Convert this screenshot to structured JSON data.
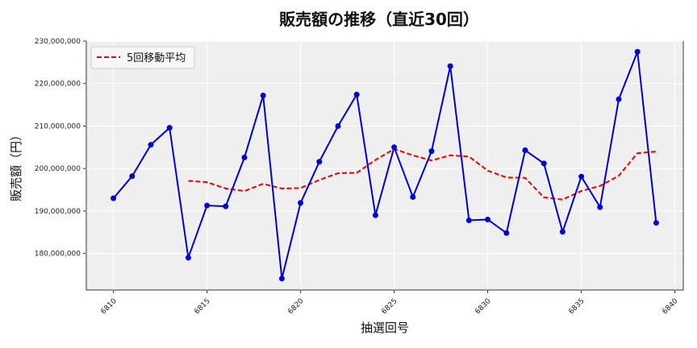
{
  "chart_data": {
    "type": "line",
    "title": "販売額の推移（直近30回）",
    "xlabel": "抽選回号",
    "ylabel": "販売額（円）",
    "x": [
      6810,
      6811,
      6812,
      6813,
      6814,
      6815,
      6816,
      6817,
      6818,
      6819,
      6820,
      6821,
      6822,
      6823,
      6824,
      6825,
      6826,
      6827,
      6828,
      6829,
      6830,
      6831,
      6832,
      6833,
      6834,
      6835,
      6836,
      6837,
      6838,
      6839
    ],
    "xticks": [
      6810,
      6815,
      6820,
      6825,
      6830,
      6835,
      6840
    ],
    "xlim": [
      6808.55,
      6840.45
    ],
    "yticks": [
      180000000,
      190000000,
      200000000,
      210000000,
      220000000,
      230000000
    ],
    "ytick_labels": [
      "180,000,000",
      "190,000,000",
      "200,000,000",
      "210,000,000",
      "220,000,000",
      "230,000,000"
    ],
    "ylim": [
      171400000,
      230000000
    ],
    "grid": true,
    "legend": "top-left",
    "series": [
      {
        "name": "",
        "color": "#0000cc",
        "style": "solid-line-with-markers",
        "values": [
          193000000,
          198200000,
          205600000,
          209600000,
          179000000,
          191300000,
          191100000,
          202600000,
          217200000,
          174100000,
          191900000,
          201600000,
          210000000,
          217400000,
          189000000,
          205000000,
          193300000,
          204100000,
          224100000,
          187800000,
          188000000,
          184800000,
          204300000,
          201200000,
          185100000,
          198100000,
          190900000,
          216300000,
          227500000,
          187200000
        ]
      },
      {
        "name": "5回移動平均",
        "color": "#ee0000",
        "style": "dashed",
        "values": [
          null,
          null,
          null,
          null,
          197100000,
          196800000,
          195300000,
          194700000,
          196400000,
          195300000,
          195400000,
          197300000,
          198900000,
          199000000,
          202000000,
          204600000,
          203100000,
          201900000,
          203100000,
          202800000,
          199500000,
          197900000,
          197800000,
          193200000,
          192700000,
          194700000,
          195900000,
          198300000,
          203600000,
          204000000
        ]
      }
    ]
  }
}
